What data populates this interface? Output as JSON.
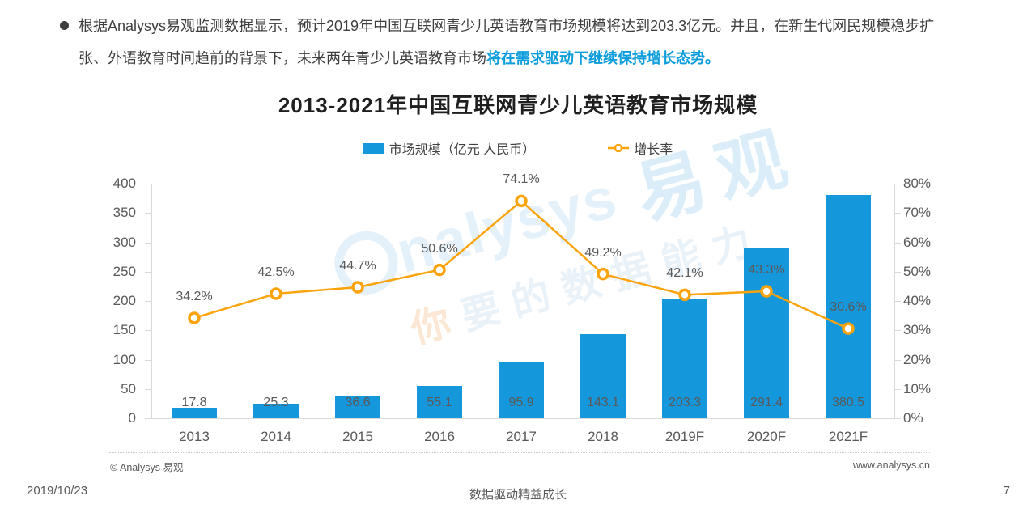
{
  "bullet": {
    "line1": "根据Analysys易观监测数据显示，预计2019年中国互联网青少儿英语教育市场规模将达到203.3亿元。并且，在新生代网民规模稳步扩",
    "line2": "张、外语教育时间趋前的背景下，未来两年青少儿英语教育市场",
    "line2_highlight": "将在需求驱动下继续保持增长态势。"
  },
  "chart_title": "2013-2021年中国互联网青少儿英语教育市场规模",
  "legend": {
    "bar_label": "市场规模（亿元 人民币）",
    "line_label": "增长率"
  },
  "chart_data": {
    "type": "bar+line",
    "title": "2013-2021年中国互联网青少儿英语教育市场规模",
    "categories": [
      "2013",
      "2014",
      "2015",
      "2016",
      "2017",
      "2018",
      "2019F",
      "2020F",
      "2021F"
    ],
    "series": [
      {
        "name": "市场规模（亿元 人民币）",
        "type": "bar",
        "values": [
          17.8,
          25.3,
          36.6,
          55.1,
          95.9,
          143.1,
          203.3,
          291.4,
          380.5
        ]
      },
      {
        "name": "增长率",
        "type": "line",
        "unit": "%",
        "values": [
          34.2,
          42.5,
          44.7,
          50.6,
          74.1,
          49.2,
          42.1,
          43.3,
          30.6
        ]
      }
    ],
    "left_axis": {
      "min": 0,
      "max": 400,
      "ticks": [
        "0",
        "50",
        "100",
        "150",
        "200",
        "250",
        "300",
        "350",
        "400"
      ]
    },
    "right_axis": {
      "min": 0,
      "max": 80,
      "ticks": [
        "0%",
        "10%",
        "20%",
        "30%",
        "40%",
        "50%",
        "60%",
        "70%",
        "80%"
      ]
    },
    "grid": false,
    "legend_position": "top"
  },
  "watermark": {
    "row1_latin": "nalysys",
    "row1_cjk": "易观",
    "row2_first": "你",
    "row2_rest": "要的数据能力"
  },
  "attribution": {
    "copyright": "© Analysys 易观",
    "website": "www.analysys.cn"
  },
  "footer": {
    "date": "2019/10/23",
    "slogan": "数据驱动精益成长",
    "page": "7"
  },
  "colors": {
    "bar_blue": "#1597DB",
    "line_orange": "#FBA30B",
    "highlight_text": "#0B9CDB",
    "label_gray": "#595959",
    "axis_gray": "#D9D9D9"
  }
}
